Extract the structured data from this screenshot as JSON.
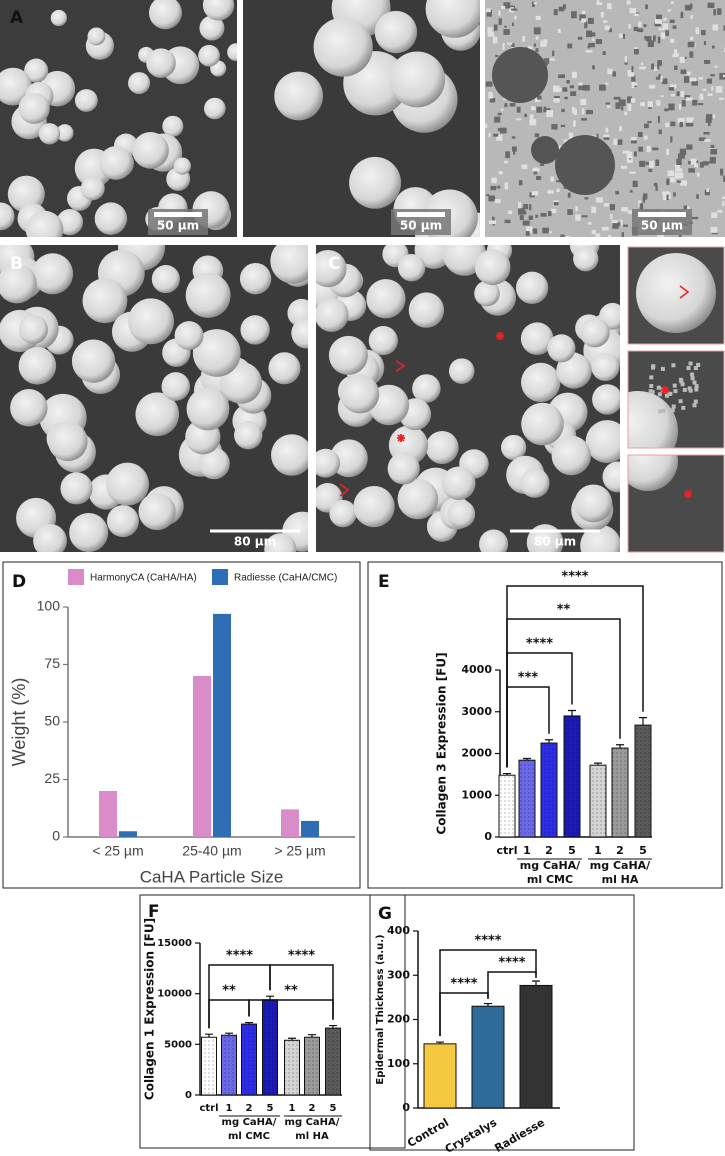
{
  "panels": [
    "A",
    "B",
    "C",
    "D",
    "E",
    "F",
    "G"
  ],
  "scale_bars": [
    "50 µm",
    "50 µm",
    "50 µm",
    "80 µm",
    "80 µm"
  ],
  "chart_data": [
    {
      "type": "bar",
      "ylabel": "Weight (%)",
      "xlabel": "CaHA Particle Size",
      "categories": [
        "< 25 µm",
        "25-40 µm",
        "> 25 µm"
      ],
      "series": [
        {
          "name": "HarmonyCA (CaHA/HA)",
          "color": "#d98cc8",
          "values": [
            20,
            70,
            12
          ]
        },
        {
          "name": "Radiesse (CaHA/CMC)",
          "color": "#2f6db5",
          "values": [
            2.5,
            97,
            7
          ]
        }
      ],
      "ylim": [
        0,
        100
      ],
      "yticks": [
        0,
        25,
        50,
        75,
        100
      ]
    },
    {
      "type": "bar",
      "ylabel": "Collagen 3 Expression  [FU]",
      "categories": [
        "ctrl",
        "1",
        "2",
        "5",
        "1",
        "2",
        "5"
      ],
      "values": [
        1480,
        1840,
        2250,
        2900,
        1720,
        2130,
        2680
      ],
      "errors": [
        40,
        40,
        80,
        130,
        50,
        80,
        180
      ],
      "colors": [
        "#ffffff",
        "#6a6ae8",
        "#2d2de8",
        "#1a1ab4",
        "#d4d4d4",
        "#9a9a9a",
        "#5a5a5a"
      ],
      "groups": [
        [
          "mg CaHA/",
          "ml CMC"
        ],
        [
          "mg CaHA/",
          "ml HA"
        ]
      ],
      "annotations": [
        "***",
        "****",
        "**",
        "****"
      ],
      "ylim": [
        0,
        4000
      ],
      "yticks": [
        0,
        1000,
        2000,
        3000,
        4000
      ]
    },
    {
      "type": "bar",
      "ylabel": "Collagen 1 Expression  [FU]",
      "categories": [
        "ctrl",
        "1",
        "2",
        "5",
        "1",
        "2",
        "5"
      ],
      "values": [
        5700,
        5900,
        7000,
        9400,
        5400,
        5700,
        6600
      ],
      "errors": [
        300,
        200,
        150,
        350,
        200,
        250,
        250
      ],
      "colors": [
        "#ffffff",
        "#6a6ae8",
        "#2d2de8",
        "#1a1ab4",
        "#d4d4d4",
        "#9a9a9a",
        "#5a5a5a"
      ],
      "groups": [
        [
          "mg CaHA/",
          "ml CMC"
        ],
        [
          "mg CaHA/",
          "ml HA"
        ]
      ],
      "annotations": [
        "****",
        "**",
        "****",
        "**"
      ],
      "ylim": [
        0,
        15000
      ],
      "yticks": [
        0,
        5000,
        10000,
        15000
      ]
    },
    {
      "type": "bar",
      "ylabel": "Epidermal Thickness (a.u.)",
      "categories": [
        "Control",
        "Crystalys",
        "Radiesse"
      ],
      "values": [
        145,
        230,
        277
      ],
      "errors": [
        4,
        6,
        10
      ],
      "colors": [
        "#f5c842",
        "#2f6b9a",
        "#333333"
      ],
      "annotations": [
        "****",
        "****",
        "****"
      ],
      "ylim": [
        0,
        400
      ],
      "yticks": [
        0,
        100,
        200,
        300,
        400
      ]
    }
  ]
}
